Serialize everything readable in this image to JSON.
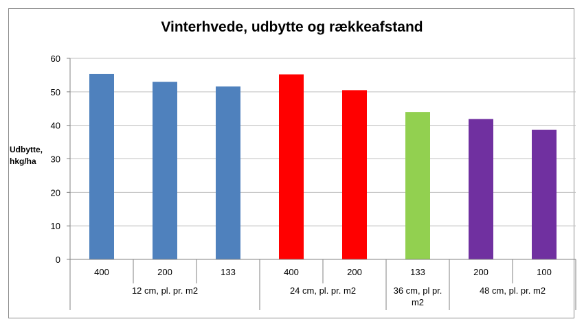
{
  "chart_data": {
    "type": "bar",
    "title": "Vinterhvede, udbytte og rækkeafstand",
    "ylabel_lines": [
      "Udbytte,",
      "hkg/ha"
    ],
    "xlabel": "",
    "ylim": [
      0,
      60
    ],
    "yticks": [
      0,
      10,
      20,
      30,
      40,
      50,
      60
    ],
    "grid": true,
    "legend": "none",
    "categories": [
      "400",
      "200",
      "133",
      "400",
      "200",
      "133",
      "200",
      "100"
    ],
    "values": [
      55.3,
      53.0,
      51.6,
      55.2,
      50.5,
      44.0,
      41.9,
      38.7
    ],
    "colors": [
      "#4f81bd",
      "#4f81bd",
      "#4f81bd",
      "#ff0000",
      "#ff0000",
      "#92d050",
      "#7030a0",
      "#7030a0"
    ],
    "groups": [
      {
        "label_lines": [
          "12 cm, pl. pr. m2"
        ],
        "start": 0,
        "count": 3
      },
      {
        "label_lines": [
          "24 cm, pl. pr. m2"
        ],
        "start": 3,
        "count": 2
      },
      {
        "label_lines": [
          "36 cm, pl pr.",
          "m2"
        ],
        "start": 5,
        "count": 1
      },
      {
        "label_lines": [
          "48 cm, pl. pr. m2"
        ],
        "start": 6,
        "count": 2
      }
    ]
  }
}
